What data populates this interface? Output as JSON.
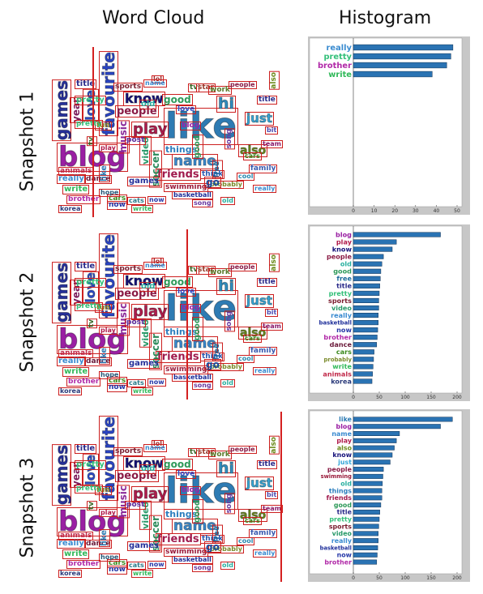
{
  "headers": {
    "word_cloud": "Word Cloud",
    "histogram": "Histogram"
  },
  "snapshots": [
    {
      "label": "Snapshot 1",
      "line_position": 0.18
    },
    {
      "label": "Snapshot 2",
      "line_position": 0.58
    },
    {
      "label": "Snapshot 3",
      "line_position": 0.98
    }
  ],
  "words": [
    {
      "text": "like",
      "color": "#2e7bb3"
    },
    {
      "text": "blog",
      "color": "#9a1fa3"
    },
    {
      "text": "favourite",
      "color": "#2a45c4"
    },
    {
      "text": "games",
      "color": "#26309a"
    },
    {
      "text": "know",
      "color": "#15127a"
    },
    {
      "text": "love",
      "color": "#2d4cc8"
    },
    {
      "text": "play",
      "color": "#b11b4b"
    },
    {
      "text": "name",
      "color": "#3a8bd0"
    },
    {
      "text": "friends",
      "color": "#a01a4d"
    },
    {
      "text": "people",
      "color": "#8a1b45"
    },
    {
      "text": "just",
      "color": "#34a7d9"
    },
    {
      "text": "hi",
      "color": "#2f8dbf"
    },
    {
      "text": "also",
      "color": "#6b8a1a"
    },
    {
      "text": "good",
      "color": "#2e9a5a"
    },
    {
      "text": "things",
      "color": "#2d7fbf"
    },
    {
      "text": "year",
      "color": "#7a1a5a"
    },
    {
      "text": "pretty",
      "color": "#34c07a"
    },
    {
      "text": "really",
      "color": "#3a8bd0"
    },
    {
      "text": "write",
      "color": "#31b95a"
    },
    {
      "text": "brother",
      "color": "#b12aa8"
    },
    {
      "text": "video",
      "color": "#2a9a6a"
    },
    {
      "text": "sports",
      "color": "#7a1c2e"
    },
    {
      "text": "dance",
      "color": "#6b1a3a"
    },
    {
      "text": "cars",
      "color": "#3c8a1e"
    },
    {
      "text": "now",
      "color": "#2638a8"
    },
    {
      "text": "music",
      "color": "#8a2a9a"
    },
    {
      "text": "think",
      "color": "#2a5ab0"
    },
    {
      "text": "old",
      "color": "#2ab0a0"
    },
    {
      "text": "swimming",
      "color": "#9a1a3a"
    },
    {
      "text": "basketball",
      "color": "#1e2f9a"
    },
    {
      "text": "free",
      "color": "#1a6a9a"
    },
    {
      "text": "title",
      "color": "#2a2a8a"
    },
    {
      "text": "animals",
      "color": "#c12a4a"
    },
    {
      "text": "probably",
      "color": "#7a8a2a"
    },
    {
      "text": "soccer",
      "color": "#2a8a5a"
    },
    {
      "text": "family",
      "color": "#3a5ab0"
    },
    {
      "text": "go",
      "color": "#1a4a9a"
    },
    {
      "text": "post",
      "color": "#5a2a9a"
    },
    {
      "text": "cats",
      "color": "#2a7a8a"
    },
    {
      "text": "team",
      "color": "#8a1a6a"
    },
    {
      "text": "song",
      "color": "#6a3aa0"
    },
    {
      "text": "korea",
      "color": "#2a3a7a"
    },
    {
      "text": "fun",
      "color": "#8a7a1a"
    },
    {
      "text": "lol",
      "color": "#a02a2a"
    },
    {
      "text": "tv",
      "color": "#3a6a2a"
    },
    {
      "text": "bit",
      "color": "#4a4ab0"
    },
    {
      "text": "cool",
      "color": "#2a8ab0"
    },
    {
      "text": "star",
      "color": "#9a3a2a"
    },
    {
      "text": "work",
      "color": "#5a7a2a"
    },
    {
      "text": "hope",
      "color": "#2a5a7a"
    }
  ],
  "chart_data": [
    {
      "type": "bar",
      "orientation": "horizontal",
      "title": "Histogram",
      "categories": [
        "really",
        "pretty",
        "brother",
        "write"
      ],
      "label_colors": [
        "#3a8bd0",
        "#34c07a",
        "#b12aa8",
        "#31b95a"
      ],
      "values": [
        48,
        47,
        45,
        38
      ],
      "xlim": [
        0,
        50
      ],
      "xticks": [
        "0",
        "10",
        "20",
        "30",
        "40",
        "50"
      ]
    },
    {
      "type": "bar",
      "orientation": "horizontal",
      "title": "Histogram",
      "categories": [
        "blog",
        "play",
        "know",
        "people",
        "old",
        "good",
        "free",
        "title",
        "pretty",
        "sports",
        "video",
        "really",
        "basketball",
        "now",
        "brother",
        "dance",
        "cars",
        "probably",
        "write",
        "animals",
        "korea"
      ],
      "label_colors": [
        "#9a1fa3",
        "#b11b4b",
        "#15127a",
        "#8a1b45",
        "#2ab0a0",
        "#2e9a5a",
        "#1a6a9a",
        "#2a2a8a",
        "#34c07a",
        "#7a1c2e",
        "#2a9a6a",
        "#3a8bd0",
        "#1e2f9a",
        "#2638a8",
        "#b12aa8",
        "#6b1a3a",
        "#3c8a1e",
        "#7a8a2a",
        "#31b95a",
        "#c12a4a",
        "#2a3a7a"
      ],
      "values": [
        168,
        83,
        75,
        58,
        55,
        53,
        52,
        51,
        50,
        49,
        49,
        48,
        48,
        47,
        46,
        45,
        40,
        39,
        38,
        37,
        36
      ],
      "xlim": [
        0,
        200
      ],
      "xticks": [
        "0",
        "50",
        "100",
        "150",
        "200"
      ]
    },
    {
      "type": "bar",
      "orientation": "horizontal",
      "title": "Histogram",
      "categories": [
        "like",
        "blog",
        "name",
        "play",
        "also",
        "know",
        "just",
        "people",
        "swimming",
        "old",
        "things",
        "friends",
        "good",
        "title",
        "pretty",
        "sports",
        "video",
        "really",
        "basketball",
        "now",
        "brother"
      ],
      "label_colors": [
        "#2e7bb3",
        "#9a1fa3",
        "#3a8bd0",
        "#b11b4b",
        "#6b8a1a",
        "#15127a",
        "#34a7d9",
        "#8a1b45",
        "#9a1a3a",
        "#2ab0a0",
        "#2d7fbf",
        "#a01a4d",
        "#2e9a5a",
        "#2a2a8a",
        "#34c07a",
        "#7a1c2e",
        "#2a9a6a",
        "#3a8bd0",
        "#1e2f9a",
        "#2638a8",
        "#b12aa8"
      ],
      "values": [
        191,
        168,
        89,
        83,
        79,
        75,
        71,
        58,
        57,
        56,
        55,
        55,
        53,
        51,
        50,
        49,
        48,
        48,
        47,
        46,
        45
      ],
      "xlim": [
        0,
        200
      ],
      "xticks": [
        "0",
        "50",
        "100",
        "150",
        "200"
      ]
    }
  ],
  "colors": {
    "bar_fill": "#2a73b3",
    "bar_stroke": "#0e2f52",
    "frame_gray": "#c7c7c7",
    "line_red": "#d42020"
  }
}
